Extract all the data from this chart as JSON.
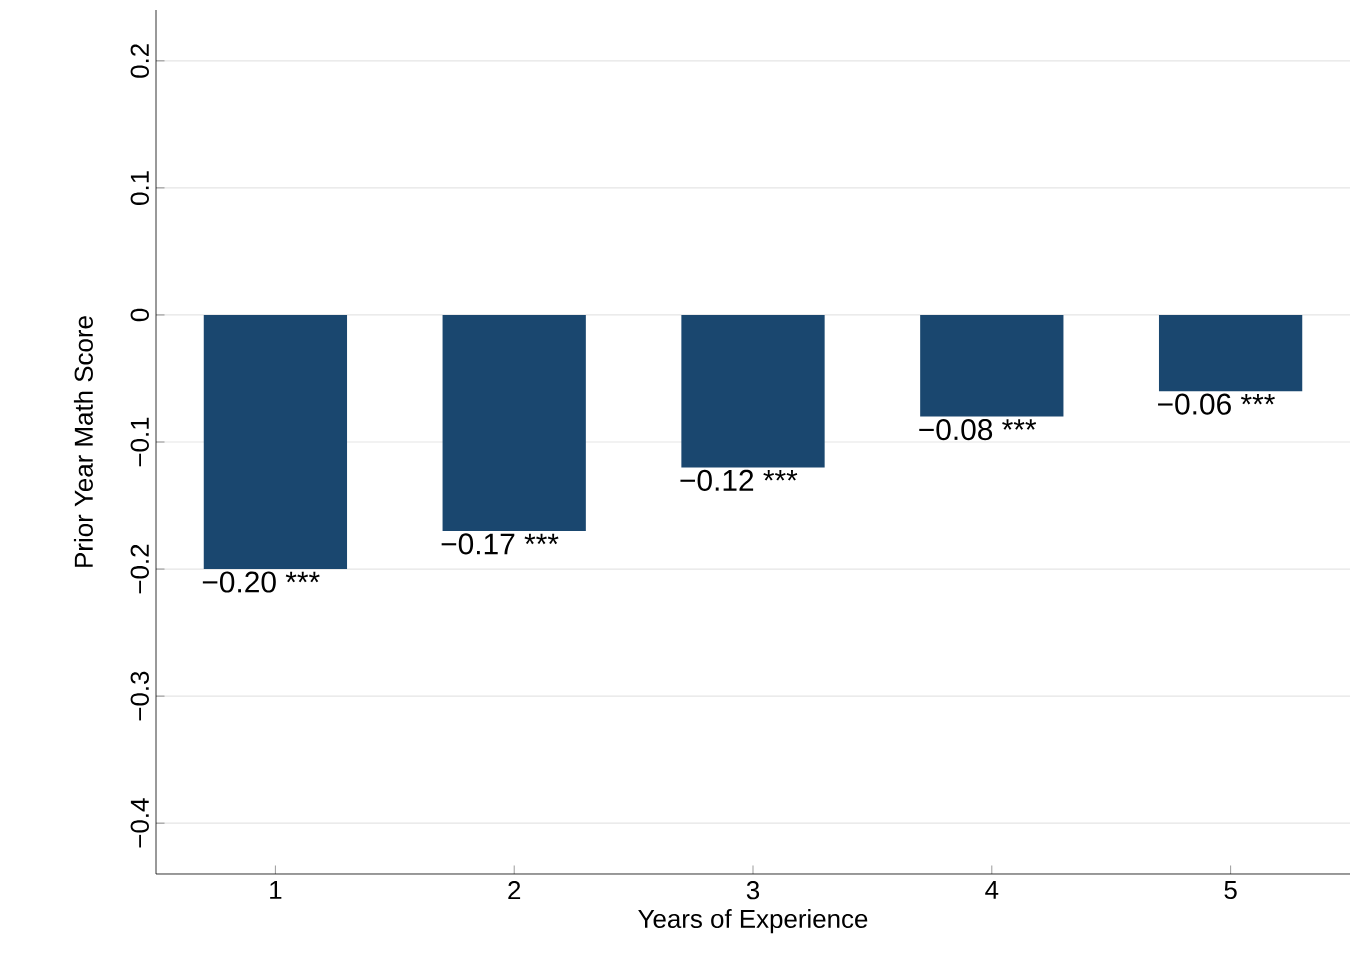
{
  "chart_data": {
    "type": "bar",
    "xlabel": "Years of Experience",
    "ylabel": "Prior Year Math Score",
    "categories": [
      "1",
      "2",
      "3",
      "4",
      "5"
    ],
    "values": [
      -0.2,
      -0.17,
      -0.12,
      -0.08,
      -0.06
    ],
    "value_labels": [
      "−0.20 ***",
      "−0.17 ***",
      "−0.12 ***",
      "−0.08 ***",
      "−0.06 ***"
    ],
    "color": "#1a476f",
    "ylim": [
      -0.44,
      0.24
    ],
    "yticks": [
      {
        "value": -0.4,
        "label": "−0.4"
      },
      {
        "value": -0.3,
        "label": "−0.3"
      },
      {
        "value": -0.2,
        "label": "−0.2"
      },
      {
        "value": -0.1,
        "label": "−0.1"
      },
      0,
      0.1,
      0.2
    ],
    "grid": "y"
  }
}
